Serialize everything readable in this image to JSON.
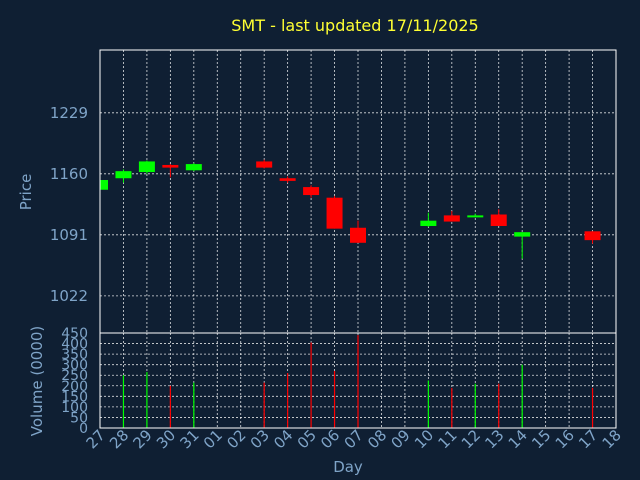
{
  "chart_data": [
    {
      "type": "candlestick",
      "title": "SMT - last updated 17/11/2025",
      "ylabel": "Price",
      "yticks": [
        1022,
        1091,
        1160,
        1229
      ],
      "ylim": [
        980,
        1300
      ],
      "up_color": "#00ff00",
      "down_color": "#ff0000",
      "candles": [
        {
          "day": "27",
          "open": 1142,
          "close": 1153,
          "high": 1153,
          "low": 1142
        },
        {
          "day": "28",
          "open": 1155,
          "close": 1163,
          "high": 1165,
          "low": 1150
        },
        {
          "day": "29",
          "open": 1162,
          "close": 1174,
          "high": 1175,
          "low": 1160
        },
        {
          "day": "30",
          "open": 1170,
          "close": 1167,
          "high": 1171,
          "low": 1156
        },
        {
          "day": "31",
          "open": 1164,
          "close": 1171,
          "high": 1172,
          "low": 1163
        },
        {
          "day": "03",
          "open": 1174,
          "close": 1167,
          "high": 1176,
          "low": 1166
        },
        {
          "day": "04",
          "open": 1155,
          "close": 1152,
          "high": 1157,
          "low": 1150
        },
        {
          "day": "05",
          "open": 1145,
          "close": 1136,
          "high": 1147,
          "low": 1133
        },
        {
          "day": "06",
          "open": 1133,
          "close": 1098,
          "high": 1135,
          "low": 1098
        },
        {
          "day": "07",
          "open": 1099,
          "close": 1082,
          "high": 1107,
          "low": 1082
        },
        {
          "day": "10",
          "open": 1101,
          "close": 1107,
          "high": 1116,
          "low": 1100
        },
        {
          "day": "11",
          "open": 1113,
          "close": 1106,
          "high": 1118,
          "low": 1106
        },
        {
          "day": "12",
          "open": 1112,
          "close": 1113,
          "high": 1115,
          "low": 1111
        },
        {
          "day": "13",
          "open": 1114,
          "close": 1101,
          "high": 1120,
          "low": 1101
        },
        {
          "day": "14",
          "open": 1089,
          "close": 1094,
          "high": 1094,
          "low": 1064
        },
        {
          "day": "17",
          "open": 1095,
          "close": 1085,
          "high": 1095,
          "low": 1081
        }
      ]
    },
    {
      "type": "bar",
      "xlabel": "Day",
      "ylabel": "Volume (0000)",
      "yticks": [
        0,
        50,
        100,
        150,
        200,
        250,
        300,
        350,
        400,
        450
      ],
      "ylim": [
        0,
        450
      ],
      "xticks": [
        "27",
        "28",
        "29",
        "30",
        "31",
        "01",
        "02",
        "03",
        "04",
        "05",
        "06",
        "07",
        "08",
        "09",
        "10",
        "11",
        "12",
        "13",
        "14",
        "15",
        "16",
        "17",
        "18"
      ],
      "volumes": [
        {
          "day": "28",
          "value": 250,
          "color": "#00ff00"
        },
        {
          "day": "29",
          "value": 265,
          "color": "#00ff00"
        },
        {
          "day": "30",
          "value": 200,
          "color": "#ff0000"
        },
        {
          "day": "31",
          "value": 215,
          "color": "#00ff00"
        },
        {
          "day": "03",
          "value": 215,
          "color": "#ff0000"
        },
        {
          "day": "04",
          "value": 260,
          "color": "#ff0000"
        },
        {
          "day": "05",
          "value": 405,
          "color": "#ff0000"
        },
        {
          "day": "06",
          "value": 270,
          "color": "#ff0000"
        },
        {
          "day": "07",
          "value": 440,
          "color": "#ff0000"
        },
        {
          "day": "10",
          "value": 225,
          "color": "#00ff00"
        },
        {
          "day": "11",
          "value": 190,
          "color": "#ff0000"
        },
        {
          "day": "12",
          "value": 210,
          "color": "#00ff00"
        },
        {
          "day": "13",
          "value": 210,
          "color": "#ff0000"
        },
        {
          "day": "14",
          "value": 300,
          "color": "#00ff00"
        },
        {
          "day": "17",
          "value": 190,
          "color": "#ff0000"
        }
      ]
    }
  ]
}
